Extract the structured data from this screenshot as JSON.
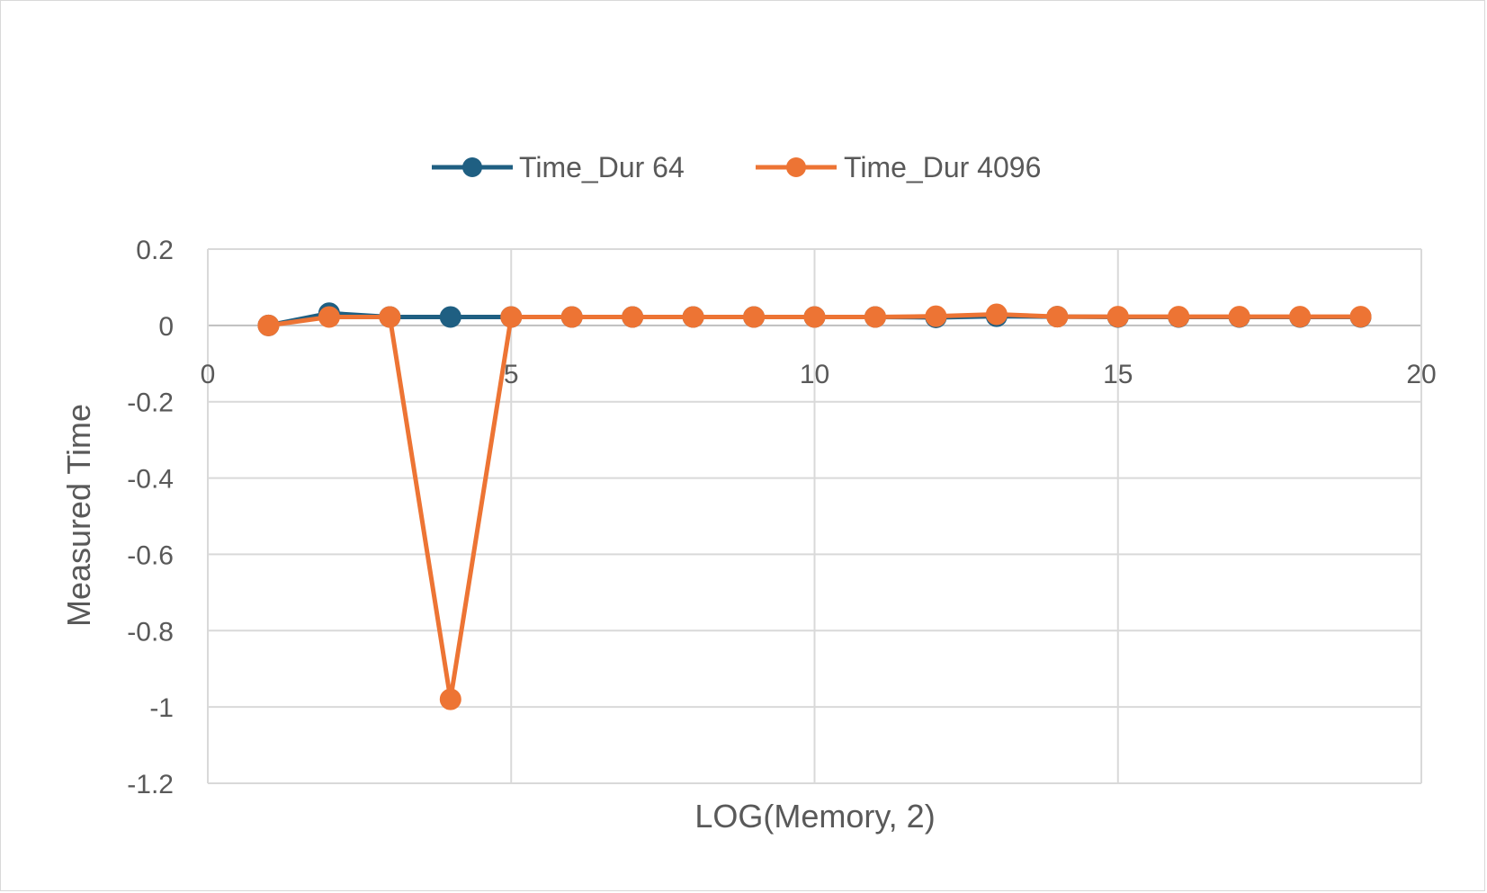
{
  "chart_data": {
    "type": "scatter",
    "title": "",
    "xlabel": "LOG(Memory, 2)",
    "ylabel": "Measured Time",
    "xlim": [
      0,
      20
    ],
    "ylim": [
      -1.2,
      0.2
    ],
    "x_ticks": [
      "0",
      "5",
      "10",
      "15",
      "20"
    ],
    "y_ticks": [
      "0.2",
      "0",
      "-0.2",
      "-0.4",
      "-0.6",
      "-0.8",
      "-1",
      "-1.2"
    ],
    "grid": true,
    "legend_position": "top",
    "series": [
      {
        "name": "Time_Dur 64",
        "color": "#1f5f82",
        "x": [
          1,
          2,
          3,
          4,
          5,
          6,
          7,
          8,
          9,
          10,
          11,
          12,
          13,
          14,
          15,
          16,
          17,
          18,
          19
        ],
        "y": [
          0.0,
          0.032,
          0.022,
          0.022,
          0.022,
          0.022,
          0.022,
          0.022,
          0.022,
          0.022,
          0.022,
          0.021,
          0.024,
          0.023,
          0.022,
          0.022,
          0.022,
          0.022,
          0.022
        ]
      },
      {
        "name": "Time_Dur 4096",
        "color": "#ed7434",
        "x": [
          1,
          2,
          3,
          4,
          5,
          6,
          7,
          8,
          9,
          10,
          11,
          12,
          13,
          14,
          15,
          16,
          17,
          18,
          19
        ],
        "y": [
          0.0,
          0.022,
          0.022,
          -0.98,
          0.022,
          0.022,
          0.022,
          0.022,
          0.022,
          0.022,
          0.022,
          0.024,
          0.029,
          0.023,
          0.023,
          0.023,
          0.023,
          0.023,
          0.023
        ]
      }
    ]
  }
}
